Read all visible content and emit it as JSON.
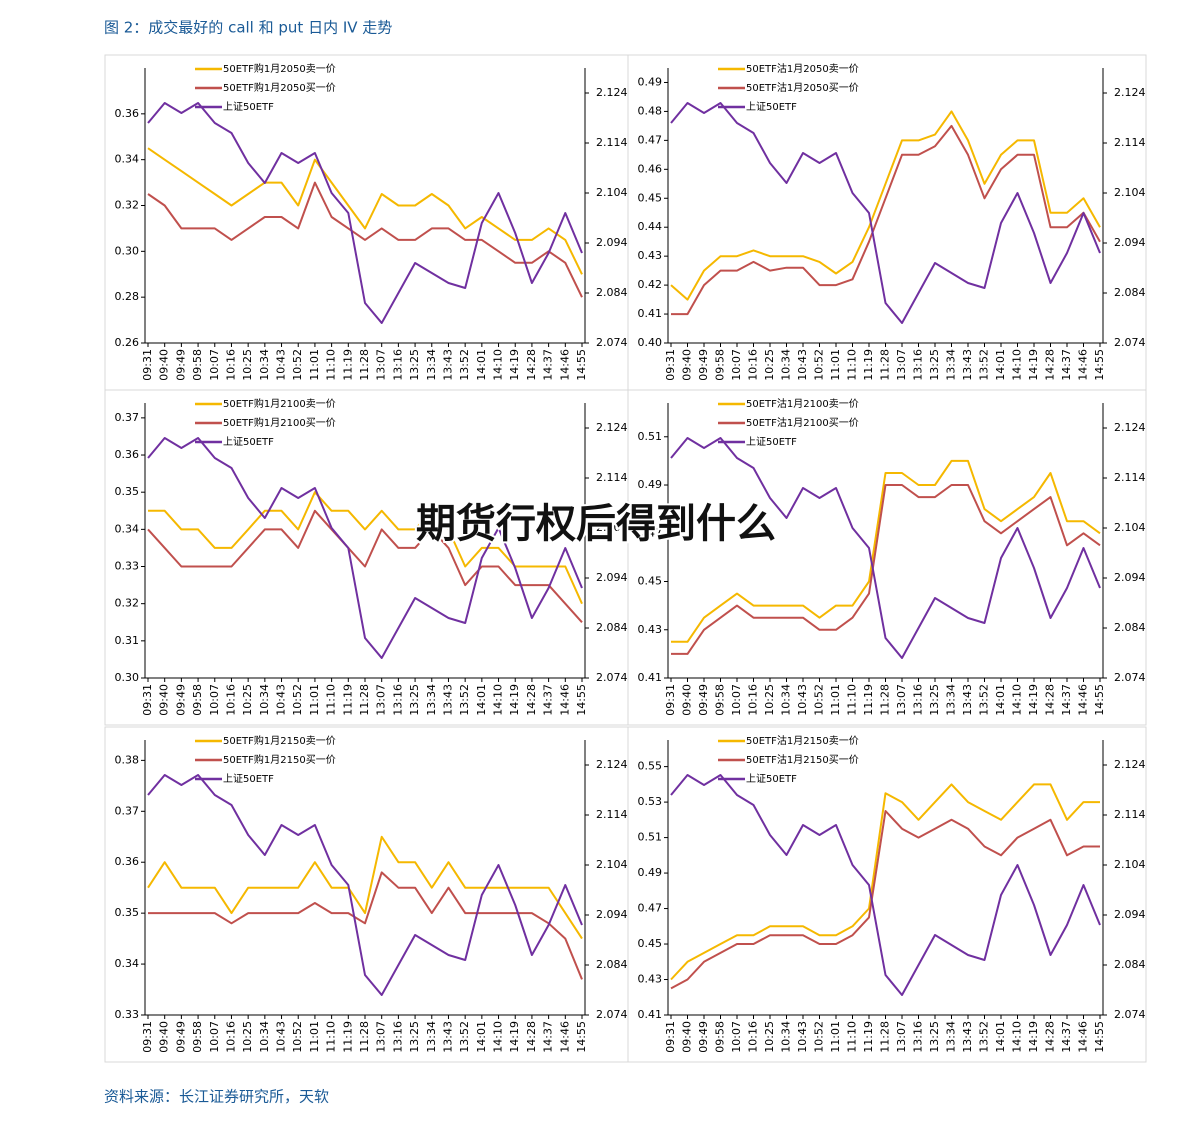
{
  "title": "图 2：成交最好的 call 和 put 日内 IV 走势",
  "source": "资料来源：长江证券研究所，天软",
  "overlay": "期货行权后得到什么",
  "chart_data": [
    {
      "type": "line",
      "categories": [
        "09:31",
        "09:40",
        "09:49",
        "09:58",
        "10:07",
        "10:16",
        "10:25",
        "10:34",
        "10:43",
        "10:52",
        "11:01",
        "11:10",
        "11:19",
        "11:28",
        "13:07",
        "13:16",
        "13:25",
        "13:34",
        "13:43",
        "13:52",
        "14:01",
        "14:10",
        "14:19",
        "14:28",
        "14:37",
        "14:46",
        "14:55"
      ],
      "ylim": [
        0.26,
        0.38
      ],
      "yticks": [
        0.26,
        0.28,
        {
          "value": 0.3,
          "label": "0.30"
        },
        0.32,
        0.34,
        0.36
      ],
      "y2lim": [
        2.074,
        2.129
      ],
      "y2ticks": [
        2.074,
        2.084,
        2.094,
        2.104,
        2.114,
        2.124
      ],
      "series": [
        {
          "name": "50ETF购1月2050卖一价",
          "color": "#f5b800",
          "values": [
            0.345,
            0.34,
            0.335,
            0.33,
            0.325,
            0.32,
            0.325,
            0.33,
            0.33,
            0.32,
            0.34,
            0.33,
            0.32,
            0.31,
            0.325,
            0.32,
            0.32,
            0.325,
            0.32,
            0.31,
            0.315,
            0.31,
            0.305,
            0.305,
            0.31,
            0.305,
            0.29
          ]
        },
        {
          "name": "50ETF购1月2050买一价",
          "color": "#c0504d",
          "values": [
            0.325,
            0.32,
            0.31,
            0.31,
            0.31,
            0.305,
            0.31,
            0.315,
            0.315,
            0.31,
            0.33,
            0.315,
            0.31,
            0.305,
            0.31,
            0.305,
            0.305,
            0.31,
            0.31,
            0.305,
            0.305,
            0.3,
            0.295,
            0.295,
            0.3,
            0.295,
            0.28
          ]
        },
        {
          "name": "上证50ETF",
          "color": "#7030a0",
          "axis": "y2",
          "values": [
            2.118,
            2.122,
            2.12,
            2.122,
            2.118,
            2.116,
            2.11,
            2.106,
            2.112,
            2.11,
            2.112,
            2.104,
            2.1,
            2.082,
            2.078,
            2.084,
            2.09,
            2.088,
            2.086,
            2.085,
            2.098,
            2.104,
            2.096,
            2.086,
            2.092,
            2.1,
            2.092
          ]
        }
      ]
    },
    {
      "type": "line",
      "categories": [
        "09:31",
        "09:40",
        "09:49",
        "09:58",
        "10:07",
        "10:16",
        "10:25",
        "10:34",
        "10:43",
        "10:52",
        "11:01",
        "11:10",
        "11:19",
        "11:28",
        "13:07",
        "13:16",
        "13:25",
        "13:34",
        "13:43",
        "13:52",
        "14:01",
        "14:10",
        "14:19",
        "14:28",
        "14:37",
        "14:46",
        "14:55"
      ],
      "ylim": [
        0.4,
        0.495
      ],
      "yticks": [
        {
          "value": 0.4,
          "label": "0.40"
        },
        0.41,
        0.42,
        0.43,
        0.44,
        0.45,
        0.46,
        0.47,
        0.48,
        0.49
      ],
      "y2lim": [
        2.074,
        2.129
      ],
      "y2ticks": [
        2.074,
        2.084,
        2.094,
        2.104,
        2.114,
        2.124
      ],
      "series": [
        {
          "name": "50ETF沽1月2050卖一价",
          "color": "#f5b800",
          "values": [
            0.42,
            0.415,
            0.425,
            0.43,
            0.43,
            0.432,
            0.43,
            0.43,
            0.43,
            0.428,
            0.424,
            0.428,
            0.44,
            0.455,
            0.47,
            0.47,
            0.472,
            0.48,
            0.47,
            0.455,
            0.465,
            0.47,
            0.47,
            0.445,
            0.445,
            0.45,
            0.44
          ]
        },
        {
          "name": "50ETF沽1月2050买一价",
          "color": "#c0504d",
          "values": [
            0.41,
            0.41,
            0.42,
            0.425,
            0.425,
            0.428,
            0.425,
            0.426,
            0.426,
            0.42,
            0.42,
            0.422,
            0.435,
            0.45,
            0.465,
            0.465,
            0.468,
            0.475,
            0.465,
            0.45,
            0.46,
            0.465,
            0.465,
            0.44,
            0.44,
            0.445,
            0.435
          ]
        },
        {
          "name": "上证50ETF",
          "color": "#7030a0",
          "axis": "y2",
          "values": [
            2.118,
            2.122,
            2.12,
            2.122,
            2.118,
            2.116,
            2.11,
            2.106,
            2.112,
            2.11,
            2.112,
            2.104,
            2.1,
            2.082,
            2.078,
            2.084,
            2.09,
            2.088,
            2.086,
            2.085,
            2.098,
            2.104,
            2.096,
            2.086,
            2.092,
            2.1,
            2.092
          ]
        }
      ]
    },
    {
      "type": "line",
      "categories": [
        "09:31",
        "09:40",
        "09:49",
        "09:58",
        "10:07",
        "10:16",
        "10:25",
        "10:34",
        "10:43",
        "10:52",
        "11:01",
        "11:10",
        "11:19",
        "11:28",
        "13:07",
        "13:16",
        "13:25",
        "13:34",
        "13:43",
        "13:52",
        "14:01",
        "14:10",
        "14:19",
        "14:28",
        "14:37",
        "14:46",
        "14:55"
      ],
      "ylim": [
        0.3,
        0.374
      ],
      "yticks": [
        {
          "value": 0.3,
          "label": "0.30"
        },
        0.31,
        0.32,
        0.33,
        0.34,
        0.35,
        0.36,
        0.37
      ],
      "y2lim": [
        2.074,
        2.129
      ],
      "y2ticks": [
        2.074,
        2.084,
        2.094,
        2.104,
        2.114,
        2.124
      ],
      "series": [
        {
          "name": "50ETF购1月2100卖一价",
          "color": "#f5b800",
          "values": [
            0.345,
            0.345,
            0.34,
            0.34,
            0.335,
            0.335,
            0.34,
            0.345,
            0.345,
            0.34,
            0.35,
            0.345,
            0.345,
            0.34,
            0.345,
            0.34,
            0.34,
            0.345,
            0.34,
            0.33,
            0.335,
            0.335,
            0.33,
            0.33,
            0.33,
            0.33,
            0.32
          ]
        },
        {
          "name": "50ETF购1月2100买一价",
          "color": "#c0504d",
          "values": [
            0.34,
            0.335,
            0.33,
            0.33,
            0.33,
            0.33,
            0.335,
            0.34,
            0.34,
            0.335,
            0.345,
            0.34,
            0.335,
            0.33,
            0.34,
            0.335,
            0.335,
            0.34,
            0.335,
            0.325,
            0.33,
            0.33,
            0.325,
            0.325,
            0.325,
            0.32,
            0.315
          ]
        },
        {
          "name": "上证50ETF",
          "color": "#7030a0",
          "axis": "y2",
          "values": [
            2.118,
            2.122,
            2.12,
            2.122,
            2.118,
            2.116,
            2.11,
            2.106,
            2.112,
            2.11,
            2.112,
            2.104,
            2.1,
            2.082,
            2.078,
            2.084,
            2.09,
            2.088,
            2.086,
            2.085,
            2.098,
            2.104,
            2.096,
            2.086,
            2.092,
            2.1,
            2.092
          ]
        }
      ]
    },
    {
      "type": "line",
      "categories": [
        "09:31",
        "09:40",
        "09:49",
        "09:58",
        "10:07",
        "10:16",
        "10:25",
        "10:34",
        "10:43",
        "10:52",
        "11:01",
        "11:10",
        "11:19",
        "11:28",
        "13:07",
        "13:16",
        "13:25",
        "13:34",
        "13:43",
        "13:52",
        "14:01",
        "14:10",
        "14:19",
        "14:28",
        "14:37",
        "14:46",
        "14:55"
      ],
      "ylim": [
        0.41,
        0.524
      ],
      "yticks": [
        0.41,
        0.43,
        0.45,
        0.47,
        0.49,
        0.51
      ],
      "y2lim": [
        2.074,
        2.129
      ],
      "y2ticks": [
        2.074,
        2.084,
        2.094,
        2.104,
        2.114,
        2.124
      ],
      "series": [
        {
          "name": "50ETF沽1月2100卖一价",
          "color": "#f5b800",
          "values": [
            0.425,
            0.425,
            0.435,
            0.44,
            0.445,
            0.44,
            0.44,
            0.44,
            0.44,
            0.435,
            0.44,
            0.44,
            0.45,
            0.495,
            0.495,
            0.49,
            0.49,
            0.5,
            0.5,
            0.48,
            0.475,
            0.48,
            0.485,
            0.495,
            0.475,
            0.475,
            0.47
          ]
        },
        {
          "name": "50ETF沽1月2100买一价",
          "color": "#c0504d",
          "values": [
            0.42,
            0.42,
            0.43,
            0.435,
            0.44,
            0.435,
            0.435,
            0.435,
            0.435,
            0.43,
            0.43,
            0.435,
            0.445,
            0.49,
            0.49,
            0.485,
            0.485,
            0.49,
            0.49,
            0.475,
            0.47,
            0.475,
            0.48,
            0.485,
            0.465,
            0.47,
            0.465
          ]
        },
        {
          "name": "上证50ETF",
          "color": "#7030a0",
          "axis": "y2",
          "values": [
            2.118,
            2.122,
            2.12,
            2.122,
            2.118,
            2.116,
            2.11,
            2.106,
            2.112,
            2.11,
            2.112,
            2.104,
            2.1,
            2.082,
            2.078,
            2.084,
            2.09,
            2.088,
            2.086,
            2.085,
            2.098,
            2.104,
            2.096,
            2.086,
            2.092,
            2.1,
            2.092
          ]
        }
      ]
    },
    {
      "type": "line",
      "categories": [
        "09:31",
        "09:40",
        "09:49",
        "09:58",
        "10:07",
        "10:16",
        "10:25",
        "10:34",
        "10:43",
        "10:52",
        "11:01",
        "11:10",
        "11:19",
        "11:28",
        "13:07",
        "13:16",
        "13:25",
        "13:34",
        "13:43",
        "13:52",
        "14:01",
        "14:10",
        "14:19",
        "14:28",
        "14:37",
        "14:46",
        "14:55"
      ],
      "ylim": [
        0.33,
        0.384
      ],
      "yticks": [
        0.33,
        0.34,
        0.35,
        0.36,
        0.37,
        0.38
      ],
      "y2lim": [
        2.074,
        2.129
      ],
      "y2ticks": [
        2.074,
        2.084,
        2.094,
        2.104,
        2.114,
        2.124
      ],
      "series": [
        {
          "name": "50ETF购1月2150卖一价",
          "color": "#f5b800",
          "values": [
            0.355,
            0.36,
            0.355,
            0.355,
            0.355,
            0.35,
            0.355,
            0.355,
            0.355,
            0.355,
            0.36,
            0.355,
            0.355,
            0.35,
            0.365,
            0.36,
            0.36,
            0.355,
            0.36,
            0.355,
            0.355,
            0.355,
            0.355,
            0.355,
            0.355,
            0.35,
            0.345
          ]
        },
        {
          "name": "50ETF购1月2150买一价",
          "color": "#c0504d",
          "values": [
            0.35,
            0.35,
            0.35,
            0.35,
            0.35,
            0.348,
            0.35,
            0.35,
            0.35,
            0.35,
            0.352,
            0.35,
            0.35,
            0.348,
            0.358,
            0.355,
            0.355,
            0.35,
            0.355,
            0.35,
            0.35,
            0.35,
            0.35,
            0.35,
            0.348,
            0.345,
            0.337
          ]
        },
        {
          "name": "上证50ETF",
          "color": "#7030a0",
          "axis": "y2",
          "values": [
            2.118,
            2.122,
            2.12,
            2.122,
            2.118,
            2.116,
            2.11,
            2.106,
            2.112,
            2.11,
            2.112,
            2.104,
            2.1,
            2.082,
            2.078,
            2.084,
            2.09,
            2.088,
            2.086,
            2.085,
            2.098,
            2.104,
            2.096,
            2.086,
            2.092,
            2.1,
            2.092
          ]
        }
      ]
    },
    {
      "type": "line",
      "categories": [
        "09:31",
        "09:40",
        "09:49",
        "09:58",
        "10:07",
        "10:16",
        "10:25",
        "10:34",
        "10:43",
        "10:52",
        "11:01",
        "11:10",
        "11:19",
        "11:28",
        "13:07",
        "13:16",
        "13:25",
        "13:34",
        "13:43",
        "13:52",
        "14:01",
        "14:10",
        "14:19",
        "14:28",
        "14:37",
        "14:46",
        "14:55"
      ],
      "ylim": [
        0.41,
        0.565
      ],
      "yticks": [
        0.41,
        0.43,
        0.45,
        0.47,
        0.49,
        0.51,
        0.53,
        0.55
      ],
      "y2lim": [
        2.074,
        2.129
      ],
      "y2ticks": [
        2.074,
        2.084,
        2.094,
        2.104,
        2.114,
        2.124
      ],
      "series": [
        {
          "name": "50ETF沽1月2150卖一价",
          "color": "#f5b800",
          "values": [
            0.43,
            0.44,
            0.445,
            0.45,
            0.455,
            0.455,
            0.46,
            0.46,
            0.46,
            0.455,
            0.455,
            0.46,
            0.47,
            0.535,
            0.53,
            0.52,
            0.53,
            0.54,
            0.53,
            0.525,
            0.52,
            0.53,
            0.54,
            0.54,
            0.52,
            0.53,
            0.53
          ]
        },
        {
          "name": "50ETF沽1月2150买一价",
          "color": "#c0504d",
          "values": [
            0.425,
            0.43,
            0.44,
            0.445,
            0.45,
            0.45,
            0.455,
            0.455,
            0.455,
            0.45,
            0.45,
            0.455,
            0.465,
            0.525,
            0.515,
            0.51,
            0.515,
            0.52,
            0.515,
            0.505,
            0.5,
            0.51,
            0.515,
            0.52,
            0.5,
            0.505,
            0.505
          ]
        },
        {
          "name": "上证50ETF",
          "color": "#7030a0",
          "axis": "y2",
          "values": [
            2.118,
            2.122,
            2.12,
            2.122,
            2.118,
            2.116,
            2.11,
            2.106,
            2.112,
            2.11,
            2.112,
            2.104,
            2.1,
            2.082,
            2.078,
            2.084,
            2.09,
            2.088,
            2.086,
            2.085,
            2.098,
            2.104,
            2.096,
            2.086,
            2.092,
            2.1,
            2.092
          ]
        }
      ]
    }
  ]
}
